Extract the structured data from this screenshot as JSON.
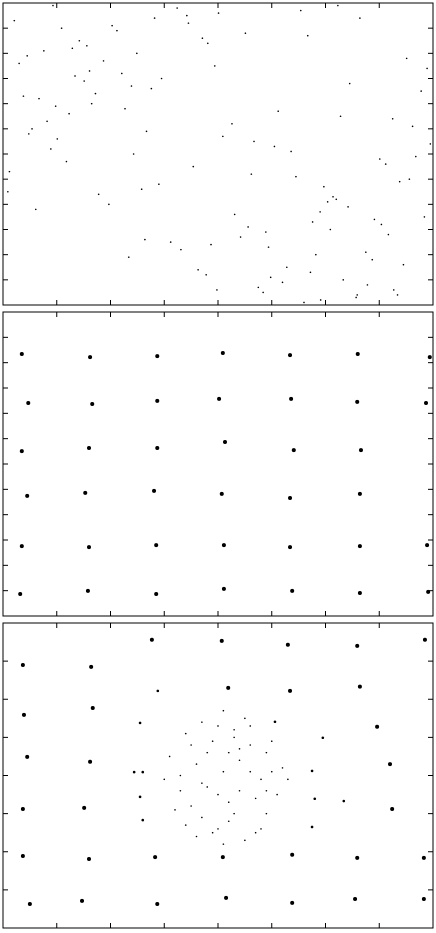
{
  "chart_data": [
    {
      "type": "scatter",
      "xlim": [
        0,
        8
      ],
      "ylim": [
        0,
        12
      ],
      "xticks": [
        0,
        1,
        2,
        3,
        4,
        5,
        6,
        7,
        8
      ],
      "yticks": [
        0,
        1,
        2,
        3,
        4,
        5,
        6,
        7,
        8,
        9,
        10,
        11,
        12
      ],
      "series": [
        {
          "color": "#000000",
          "marker_size": 0.8,
          "x": [
            0.12,
            3.45,
            6.78,
            1.23,
            4.56,
            7.89,
            2.34,
            5.67,
            0.89,
            3.12,
            6.45,
            1.78,
            4.01,
            7.34,
            2.67,
            5.9,
            0.45,
            3.78,
            7.01,
            1.56,
            4.89,
            7.62,
            2.9,
            6.23,
            0.67,
            3.98,
            6.91,
            1.34,
            4.67,
            7.45,
            2.12,
            5.45,
            0.98,
            3.31,
            6.64,
            1.97,
            5.2,
            7.78,
            2.43,
            5.76,
            0.3,
            3.63,
            7.12,
            1.09,
            4.42,
            7.25,
            2.58,
            5.91,
            0.76,
            4.09,
            6.42,
            1.65,
            4.98,
            7.56,
            2.21,
            5.54,
            0.54,
            3.87,
            6.2,
            1.42,
            4.75,
            7.95,
            2.76,
            6.09,
            0.21,
            3.54,
            6.87,
            1.87,
            5.12,
            7.38,
            2.49,
            5.82,
            1.01,
            3.24,
            6.57,
            0.38,
            4.31,
            7.68,
            2.95,
            5.28,
            0.82,
            3.71,
            6.04,
            1.51,
            4.84,
            7.17,
            2.03,
            5.36,
            0.61,
            3.94,
            6.33,
            1.18,
            4.51,
            7.84,
            2.27,
            5.6,
            0.09,
            3.42,
            6.75,
            1.72,
            5.05,
            7.51,
            2.64,
            5.97,
            0.93,
            4.26,
            6.59,
            1.29,
            4.62,
            7.04,
            2.39,
            5.72,
            0.48,
            3.81,
            6.14,
            1.61,
            4.94,
            7.27,
            2.82,
            6.28
          ],
          "values": [
            5.3,
            11.2,
            0.8,
            7.6,
            3.1,
            9.4,
            1.9,
            10.7,
            6.2,
            2.5,
            8.8,
            4.4,
            11.6,
            0.4,
            6.9,
            3.7,
            9.9,
            1.2,
            5.8,
            10.3,
            2.9,
            7.1,
            4.8,
            11.9,
            8.2,
            0.6,
            3.4,
            9.1,
            6.5,
            1.6,
            10.9,
            5.1,
            7.9,
            2.2,
            11.4,
            4.0,
            0.9,
            8.5,
            6.0,
            3.3,
            9.6,
            1.4,
            5.6,
            11.0,
            2.7,
            7.4,
            4.6,
            0.2,
            10.1,
            6.7,
            3.9,
            8.0,
            1.1,
            5.0,
            9.2,
            11.7,
            7.0,
            2.4,
            4.2,
            10.5,
            0.7,
            6.4,
            8.6,
            3.0,
            11.3,
            5.5,
            1.8,
            9.7,
            7.7,
            4.9,
            10.0,
            2.0,
            6.6,
            11.8,
            0.3,
            8.3,
            3.6,
            5.9,
            9.0,
            1.5,
            7.3,
            10.6,
            4.1,
            8.9,
            0.5,
            2.8,
            11.1,
            6.1,
            3.8,
            9.5,
            1.0,
            5.7,
            10.8,
            3.5,
            7.8,
            0.1,
            4.5,
            11.5,
            2.1,
            8.4,
            6.3,
            9.8,
            2.6,
            4.7,
            11.9,
            7.2,
            0.4,
            10.2,
            5.2,
            3.2,
            8.7,
            1.3,
            6.8,
            10.4,
            4.3,
            9.3,
            2.3,
            0.6,
            11.4,
            7.5
          ]
        }
      ]
    },
    {
      "type": "scatter",
      "xlim": [
        0,
        8
      ],
      "ylim": [
        0,
        12
      ],
      "xticks": [
        0,
        1,
        2,
        3,
        4,
        5,
        6,
        7,
        8
      ],
      "yticks": [
        0,
        1,
        2,
        3,
        4,
        5,
        6,
        7,
        8,
        9,
        10,
        11,
        12
      ],
      "series": [
        {
          "color": "#000000",
          "marker_size": 2,
          "x": [
            0.35,
            1.62,
            2.87,
            4.09,
            5.34,
            6.6,
            7.94,
            0.47,
            1.66,
            2.87,
            4.02,
            5.36,
            6.59,
            7.87,
            0.35,
            1.6,
            2.87,
            4.13,
            5.41,
            6.66,
            0.45,
            1.53,
            2.81,
            4.07,
            5.34,
            6.64,
            0.35,
            1.6,
            2.85,
            4.11,
            5.34,
            6.64,
            7.89,
            0.32,
            1.58,
            2.85,
            4.11,
            5.38,
            6.64,
            7.91
          ],
          "values": [
            10.34,
            10.22,
            10.26,
            10.38,
            10.3,
            10.34,
            10.22,
            8.41,
            8.37,
            8.49,
            8.57,
            8.57,
            8.45,
            8.41,
            6.51,
            6.63,
            6.63,
            6.87,
            6.55,
            6.55,
            4.74,
            4.86,
            4.94,
            4.82,
            4.66,
            4.82,
            2.76,
            2.72,
            2.8,
            2.8,
            2.72,
            2.76,
            2.8,
            0.87,
            0.99,
            0.87,
            1.07,
            0.99,
            0.91,
            0.95
          ]
        }
      ]
    },
    {
      "type": "scatter",
      "xlim": [
        0,
        8
      ],
      "ylim": [
        0,
        8
      ],
      "xticks": [
        0,
        1,
        2,
        3,
        4,
        5,
        6,
        7,
        8
      ],
      "yticks": [
        0,
        1,
        2,
        3,
        4,
        5,
        6,
        7,
        8
      ],
      "series": [
        {
          "color": "#000000",
          "marker_size": 2,
          "x": [
            0.37,
            1.64,
            2.77,
            4.07,
            5.3,
            6.59,
            7.85,
            0.39,
            1.67,
            4.19,
            5.34,
            6.64,
            0.45,
            1.62,
            6.96,
            7.2,
            0.37,
            1.51,
            7.24,
            0.37,
            1.6,
            2.83,
            4.09,
            5.38,
            6.59,
            7.83,
            0.5,
            1.47,
            2.87,
            4.15,
            5.38,
            6.55,
            7.83
          ],
          "values": [
            6.9,
            6.85,
            7.56,
            7.53,
            7.43,
            7.4,
            7.56,
            5.59,
            5.77,
            6.3,
            6.22,
            6.33,
            4.49,
            4.36,
            5.28,
            4.3,
            3.12,
            3.15,
            3.12,
            1.89,
            1.81,
            1.86,
            1.86,
            1.92,
            1.84,
            1.84,
            0.63,
            0.71,
            0.63,
            0.79,
            0.66,
            0.76,
            0.76
          ]
        },
        {
          "color": "#000000",
          "marker_size": 1.3,
          "x": [
            2.88,
            2.55,
            5.06,
            5.95,
            2.44,
            2.6,
            5.75,
            2.55,
            5.8,
            6.34,
            2.6,
            5.75
          ],
          "values": [
            6.22,
            5.38,
            5.41,
            4.99,
            4.09,
            4.09,
            4.12,
            3.44,
            3.39,
            3.33,
            2.83,
            2.65
          ]
        },
        {
          "color": "#000000",
          "marker_size": 0.8,
          "x": [
            3.1,
            3.4,
            3.7,
            4.0,
            4.3,
            4.6,
            4.9,
            5.2,
            3.3,
            3.6,
            3.9,
            4.2,
            4.5,
            4.8,
            5.1,
            3.0,
            3.5,
            3.8,
            4.1,
            4.4,
            4.7,
            5.0,
            5.3,
            3.2,
            3.7,
            4.0,
            4.3,
            4.6,
            4.9,
            3.4,
            3.9,
            4.2,
            4.5,
            4.8,
            3.6,
            4.1,
            4.4,
            4.7,
            3.8,
            4.3,
            3.5,
            4.0,
            4.6,
            5.0,
            3.3,
            4.2,
            4.9,
            3.7,
            4.4,
            4.1
          ],
          "values": [
            4.5,
            5.1,
            5.4,
            5.3,
            5.0,
            4.8,
            4.6,
            4.2,
            3.6,
            4.3,
            4.9,
            4.6,
            5.5,
            3.9,
            3.5,
            3.9,
            3.2,
            3.7,
            4.1,
            4.4,
            3.4,
            4.9,
            3.9,
            3.1,
            2.9,
            3.5,
            3.0,
            4.1,
            3.0,
            2.7,
            2.5,
            2.8,
            2.3,
            2.6,
            2.4,
            2.2,
            3.6,
            2.5,
            4.6,
            5.2,
            4.8,
            2.6,
            5.3,
            4.1,
            4.0,
            3.3,
            3.6,
            3.8,
            4.7,
            5.7
          ]
        }
      ]
    }
  ]
}
